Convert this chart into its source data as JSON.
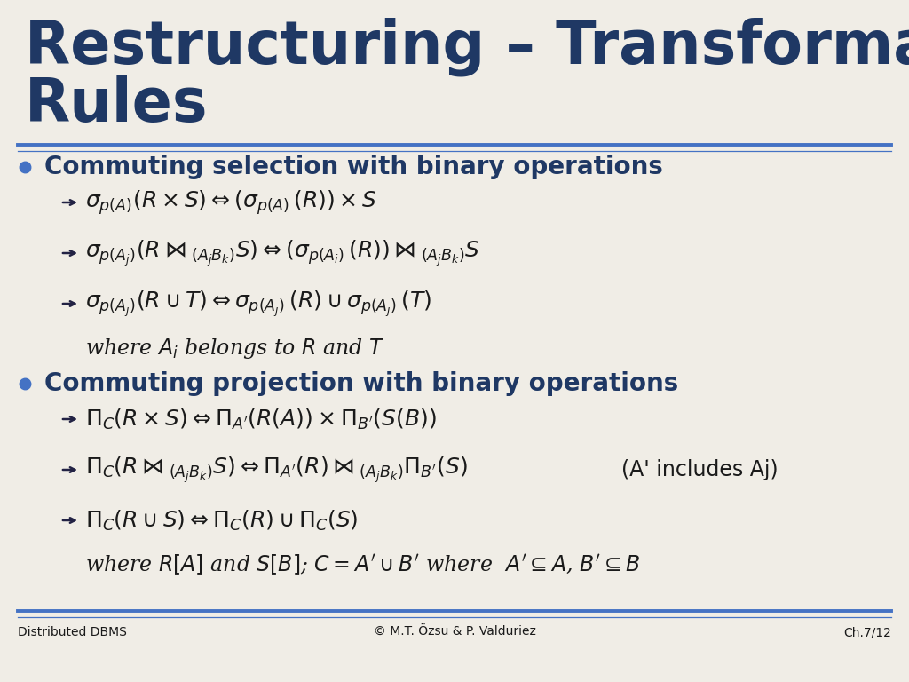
{
  "bg_color": "#f0ede6",
  "title_color": "#1f3864",
  "title_line1": "Restructuring – Transformation",
  "title_line2": "Rules",
  "title_fontsize": 48,
  "bullet_color": "#4472c4",
  "text_color": "#1a1a1a",
  "heading_fontsize": 20,
  "formula_fontsize": 18,
  "note_fontsize": 17,
  "footer_fontsize": 10,
  "line_color": "#4472c4",
  "footer_left": "Distributed DBMS",
  "footer_center": "© M.T. Özsu & P. Valduriez",
  "footer_right": "Ch.7/12"
}
